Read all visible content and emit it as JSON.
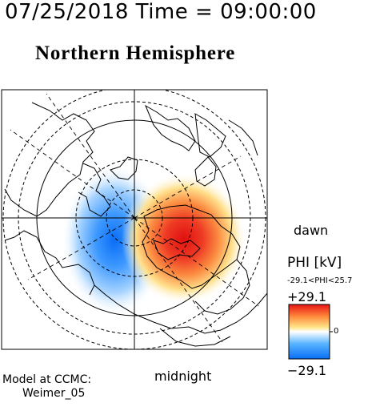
{
  "header": {
    "time": "07/25/2018 Time = 09:00:00",
    "title": "Northern Hemisphere"
  },
  "map": {
    "hemisphere": "north",
    "projection": "polar",
    "latitude_rings_deg": [
      80,
      70,
      60,
      50
    ],
    "meridian_step_deg": 30,
    "dawn_label": "dawn",
    "midnight_label": "midnight",
    "land_outline_color": "#000000"
  },
  "colorbar": {
    "label": "PHI [kV]",
    "range_text": "-29.1<PHI<25.7",
    "max_label": "+29.1",
    "min_label": "−29.1",
    "zero_label": "0",
    "colors": [
      "#0a6ef5",
      "#58b4ff",
      "#ffffff",
      "#ffe58a",
      "#ff8a3c",
      "#e61414"
    ]
  },
  "potential": {
    "min_kv": -29.1,
    "max_kv": 25.7,
    "dusk_cell_color": "#2e8cff",
    "dawn_cell_color": "#e61414"
  },
  "footer": {
    "line1": "Model at CCMC:",
    "line2": "Weimer_05"
  }
}
